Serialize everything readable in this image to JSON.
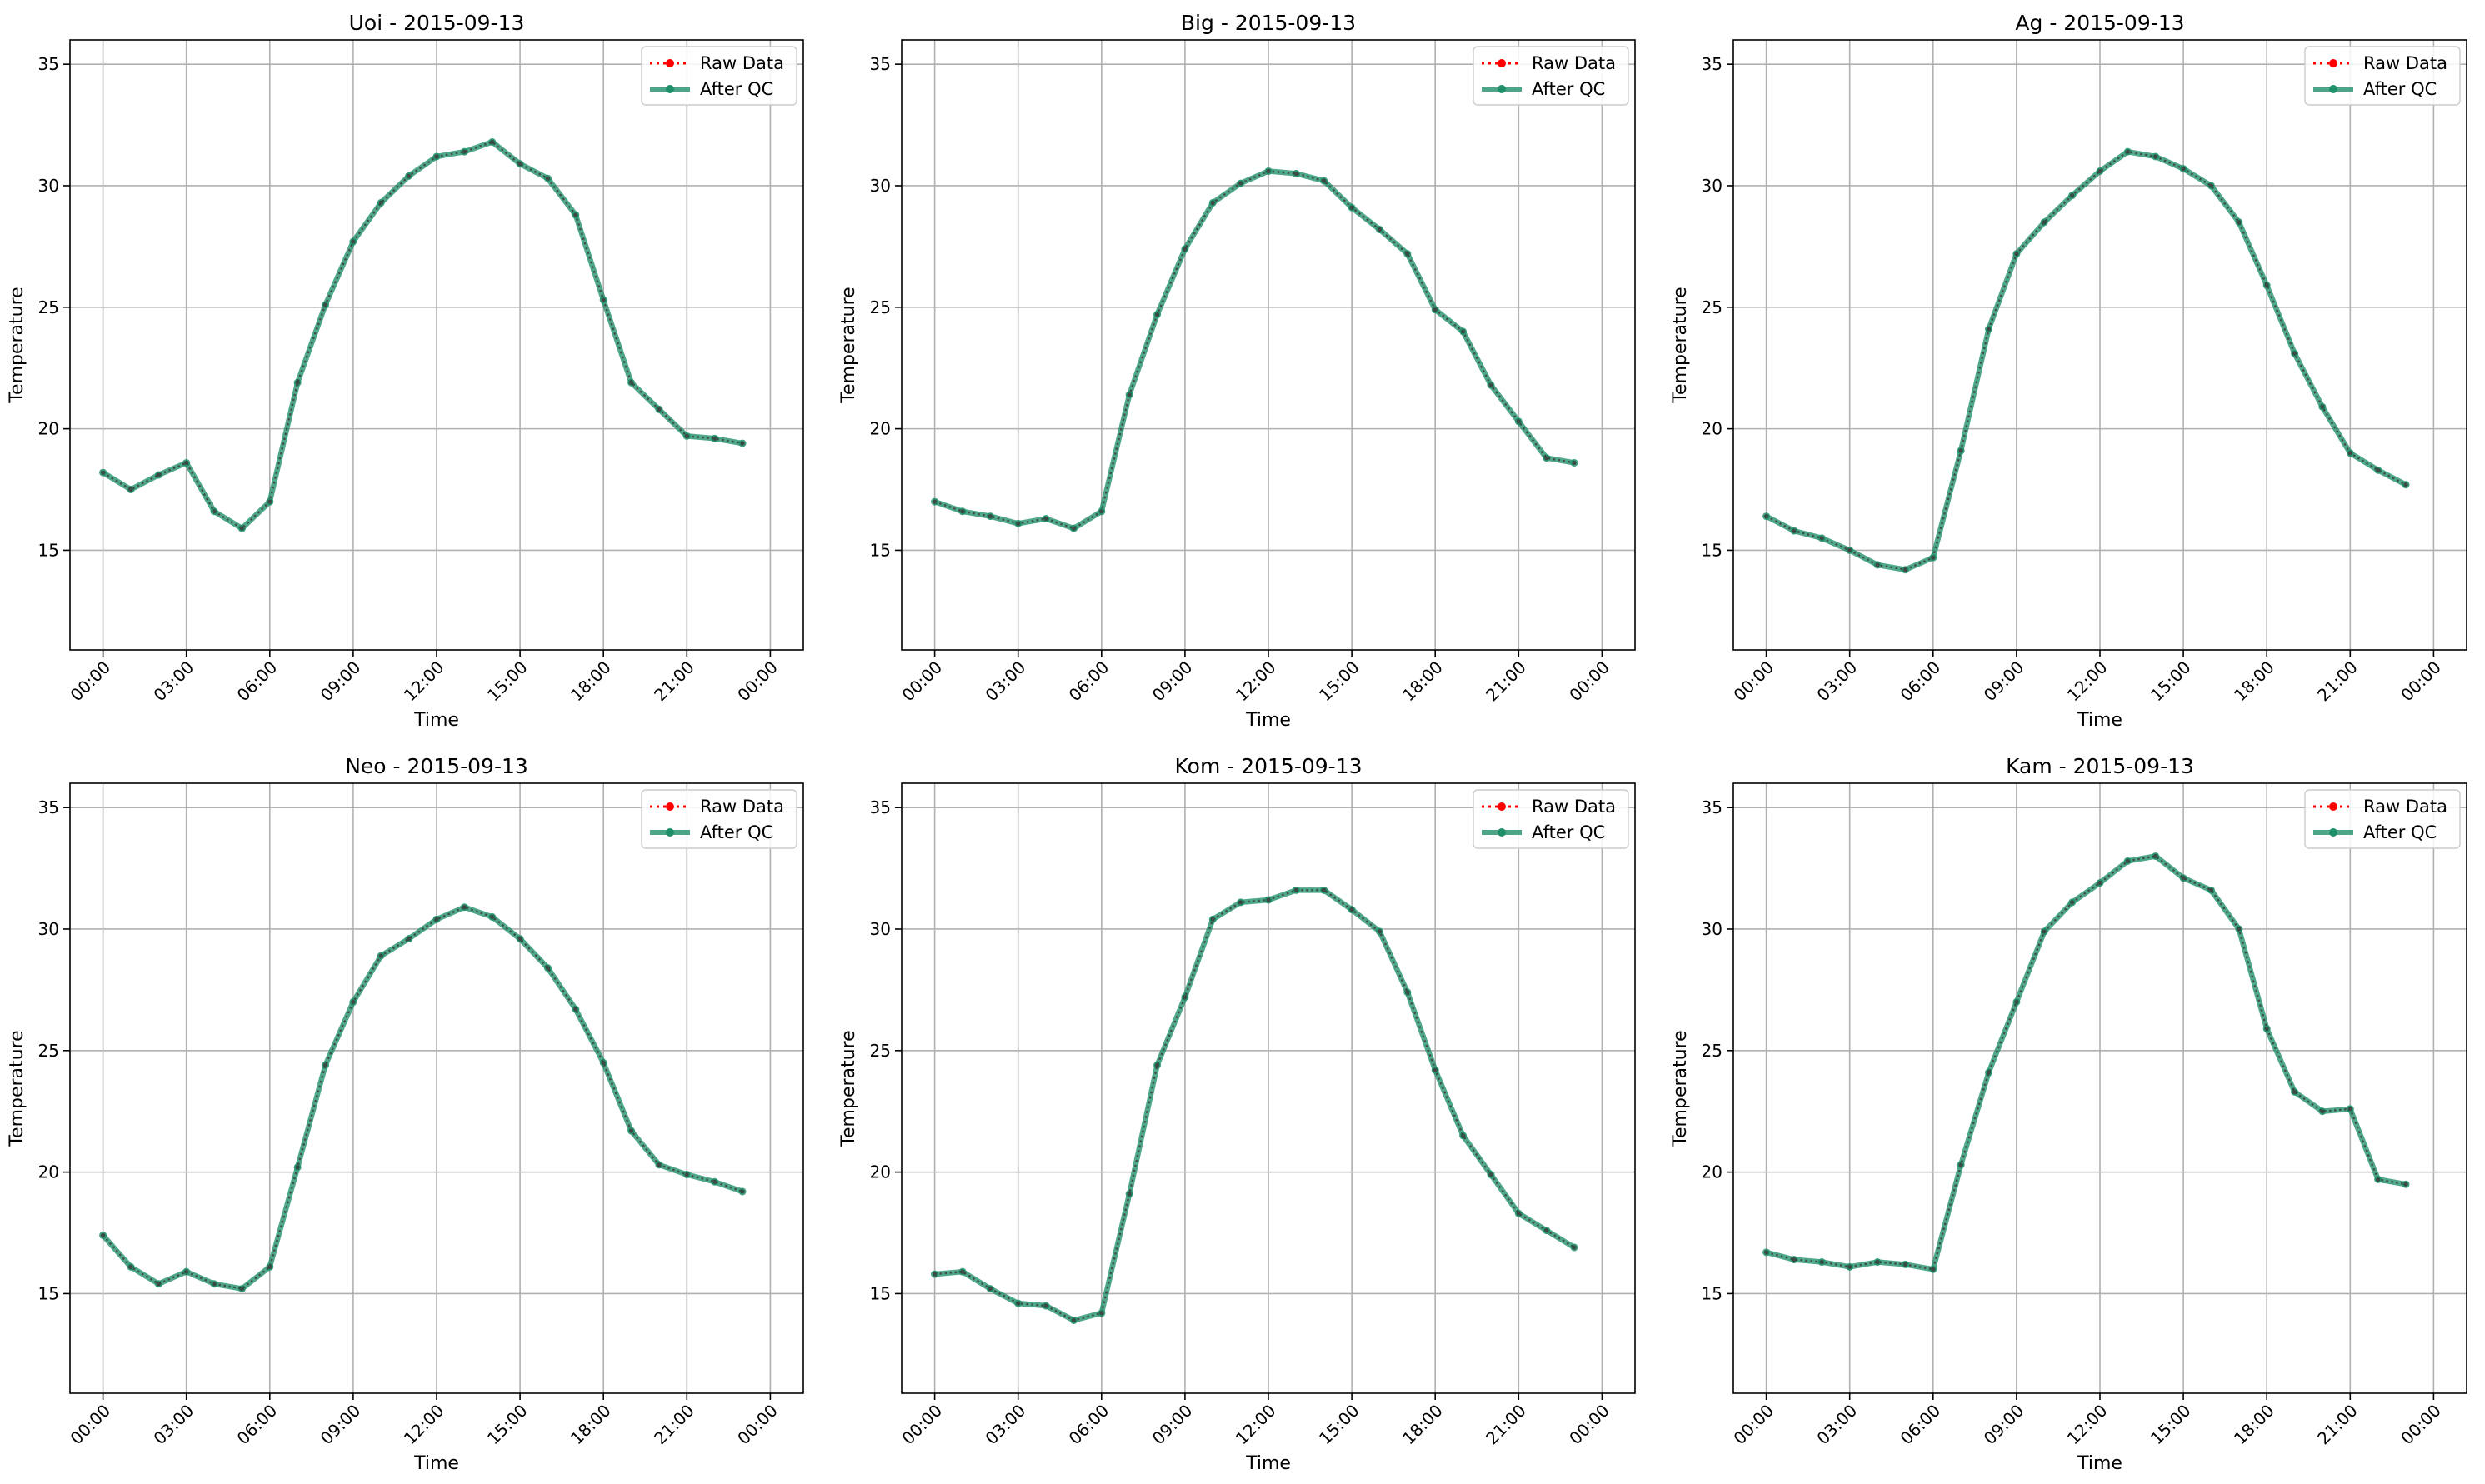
{
  "chart_data": [
    {
      "type": "line",
      "title": "Uoi - 2015-09-13",
      "xlabel": "Time",
      "ylabel": "Temperature",
      "x": [
        "00:00",
        "01:00",
        "02:00",
        "03:00",
        "04:00",
        "05:00",
        "06:00",
        "07:00",
        "08:00",
        "09:00",
        "10:00",
        "11:00",
        "12:00",
        "13:00",
        "14:00",
        "15:00",
        "16:00",
        "17:00",
        "18:00",
        "19:00",
        "20:00",
        "21:00",
        "22:00",
        "23:00"
      ],
      "xticks": [
        "00:00",
        "03:00",
        "06:00",
        "09:00",
        "12:00",
        "15:00",
        "18:00",
        "21:00",
        "00:00"
      ],
      "yticks": [
        15,
        20,
        25,
        30,
        35
      ],
      "ylim": [
        10.9,
        36.0
      ],
      "grid": true,
      "legend": "top-right",
      "series": [
        {
          "name": "Raw Data",
          "color": "#ff0000",
          "style": "dotted",
          "values": [
            18.2,
            17.5,
            18.1,
            18.6,
            16.6,
            15.9,
            17.0,
            21.9,
            25.1,
            27.7,
            29.3,
            30.4,
            31.2,
            31.4,
            31.8,
            30.9,
            30.3,
            28.8,
            25.3,
            21.9,
            20.8,
            19.7,
            19.6,
            19.4
          ]
        },
        {
          "name": "After QC",
          "color": "#1f8f6a",
          "style": "solid",
          "values": [
            18.2,
            17.5,
            18.1,
            18.6,
            16.6,
            15.9,
            17.0,
            21.9,
            25.1,
            27.7,
            29.3,
            30.4,
            31.2,
            31.4,
            31.8,
            30.9,
            30.3,
            28.8,
            25.3,
            21.9,
            20.8,
            19.7,
            19.6,
            19.4
          ]
        }
      ]
    },
    {
      "type": "line",
      "title": "Big - 2015-09-13",
      "xlabel": "Time",
      "ylabel": "Temperature",
      "x": [
        "00:00",
        "01:00",
        "02:00",
        "03:00",
        "04:00",
        "05:00",
        "06:00",
        "07:00",
        "08:00",
        "09:00",
        "10:00",
        "11:00",
        "12:00",
        "13:00",
        "14:00",
        "15:00",
        "16:00",
        "17:00",
        "18:00",
        "19:00",
        "20:00",
        "21:00",
        "22:00",
        "23:00"
      ],
      "xticks": [
        "00:00",
        "03:00",
        "06:00",
        "09:00",
        "12:00",
        "15:00",
        "18:00",
        "21:00",
        "00:00"
      ],
      "yticks": [
        15,
        20,
        25,
        30,
        35
      ],
      "ylim": [
        10.9,
        36.0
      ],
      "grid": true,
      "legend": "top-right",
      "series": [
        {
          "name": "Raw Data",
          "color": "#ff0000",
          "style": "dotted",
          "values": [
            17.0,
            16.6,
            16.4,
            16.1,
            16.3,
            15.9,
            16.6,
            21.4,
            24.7,
            27.4,
            29.3,
            30.1,
            30.6,
            30.5,
            30.2,
            29.1,
            28.2,
            27.2,
            24.9,
            24.0,
            21.8,
            20.3,
            18.8,
            18.6
          ]
        },
        {
          "name": "After QC",
          "color": "#1f8f6a",
          "style": "solid",
          "values": [
            17.0,
            16.6,
            16.4,
            16.1,
            16.3,
            15.9,
            16.6,
            21.4,
            24.7,
            27.4,
            29.3,
            30.1,
            30.6,
            30.5,
            30.2,
            29.1,
            28.2,
            27.2,
            24.9,
            24.0,
            21.8,
            20.3,
            18.8,
            18.6
          ]
        }
      ]
    },
    {
      "type": "line",
      "title": "Ag - 2015-09-13",
      "xlabel": "Time",
      "ylabel": "Temperature",
      "x": [
        "00:00",
        "01:00",
        "02:00",
        "03:00",
        "04:00",
        "05:00",
        "06:00",
        "07:00",
        "08:00",
        "09:00",
        "10:00",
        "11:00",
        "12:00",
        "13:00",
        "14:00",
        "15:00",
        "16:00",
        "17:00",
        "18:00",
        "19:00",
        "20:00",
        "21:00",
        "22:00",
        "23:00"
      ],
      "xticks": [
        "00:00",
        "03:00",
        "06:00",
        "09:00",
        "12:00",
        "15:00",
        "18:00",
        "21:00",
        "00:00"
      ],
      "yticks": [
        15,
        20,
        25,
        30,
        35
      ],
      "ylim": [
        10.9,
        36.0
      ],
      "grid": true,
      "legend": "top-right",
      "series": [
        {
          "name": "Raw Data",
          "color": "#ff0000",
          "style": "dotted",
          "values": [
            16.4,
            15.8,
            15.5,
            15.0,
            14.4,
            14.2,
            14.7,
            19.1,
            24.1,
            27.2,
            28.5,
            29.6,
            30.6,
            31.4,
            31.2,
            30.7,
            30.0,
            28.5,
            25.9,
            23.1,
            20.9,
            19.0,
            18.3,
            17.7
          ]
        },
        {
          "name": "After QC",
          "color": "#1f8f6a",
          "style": "solid",
          "values": [
            16.4,
            15.8,
            15.5,
            15.0,
            14.4,
            14.2,
            14.7,
            19.1,
            24.1,
            27.2,
            28.5,
            29.6,
            30.6,
            31.4,
            31.2,
            30.7,
            30.0,
            28.5,
            25.9,
            23.1,
            20.9,
            19.0,
            18.3,
            17.7
          ]
        }
      ]
    },
    {
      "type": "line",
      "title": "Neo - 2015-09-13",
      "xlabel": "Time",
      "ylabel": "Temperature",
      "x": [
        "00:00",
        "01:00",
        "02:00",
        "03:00",
        "04:00",
        "05:00",
        "06:00",
        "07:00",
        "08:00",
        "09:00",
        "10:00",
        "11:00",
        "12:00",
        "13:00",
        "14:00",
        "15:00",
        "16:00",
        "17:00",
        "18:00",
        "19:00",
        "20:00",
        "21:00",
        "22:00",
        "23:00"
      ],
      "xticks": [
        "00:00",
        "03:00",
        "06:00",
        "09:00",
        "12:00",
        "15:00",
        "18:00",
        "21:00",
        "00:00"
      ],
      "yticks": [
        15,
        20,
        25,
        30,
        35
      ],
      "ylim": [
        10.9,
        36.0
      ],
      "grid": true,
      "legend": "top-right",
      "series": [
        {
          "name": "Raw Data",
          "color": "#ff0000",
          "style": "dotted",
          "values": [
            17.4,
            16.1,
            15.4,
            15.9,
            15.4,
            15.2,
            16.1,
            20.2,
            24.4,
            27.0,
            28.9,
            29.6,
            30.4,
            30.9,
            30.5,
            29.6,
            28.4,
            26.7,
            24.5,
            21.7,
            20.3,
            19.9,
            19.6,
            19.2
          ]
        },
        {
          "name": "After QC",
          "color": "#1f8f6a",
          "style": "solid",
          "values": [
            17.4,
            16.1,
            15.4,
            15.9,
            15.4,
            15.2,
            16.1,
            20.2,
            24.4,
            27.0,
            28.9,
            29.6,
            30.4,
            30.9,
            30.5,
            29.6,
            28.4,
            26.7,
            24.5,
            21.7,
            20.3,
            19.9,
            19.6,
            19.2
          ]
        }
      ]
    },
    {
      "type": "line",
      "title": "Kom - 2015-09-13",
      "xlabel": "Time",
      "ylabel": "Temperature",
      "x": [
        "00:00",
        "01:00",
        "02:00",
        "03:00",
        "04:00",
        "05:00",
        "06:00",
        "07:00",
        "08:00",
        "09:00",
        "10:00",
        "11:00",
        "12:00",
        "13:00",
        "14:00",
        "15:00",
        "16:00",
        "17:00",
        "18:00",
        "19:00",
        "20:00",
        "21:00",
        "22:00",
        "23:00"
      ],
      "xticks": [
        "00:00",
        "03:00",
        "06:00",
        "09:00",
        "12:00",
        "15:00",
        "18:00",
        "21:00",
        "00:00"
      ],
      "yticks": [
        15,
        20,
        25,
        30,
        35
      ],
      "ylim": [
        10.9,
        36.0
      ],
      "grid": true,
      "legend": "top-right",
      "series": [
        {
          "name": "Raw Data",
          "color": "#ff0000",
          "style": "dotted",
          "values": [
            15.8,
            15.9,
            15.2,
            14.6,
            14.5,
            13.9,
            14.2,
            19.1,
            24.4,
            27.2,
            30.4,
            31.1,
            31.2,
            31.6,
            31.6,
            30.8,
            29.9,
            27.4,
            24.2,
            21.5,
            19.9,
            18.3,
            17.6,
            16.9
          ]
        },
        {
          "name": "After QC",
          "color": "#1f8f6a",
          "style": "solid",
          "values": [
            15.8,
            15.9,
            15.2,
            14.6,
            14.5,
            13.9,
            14.2,
            19.1,
            24.4,
            27.2,
            30.4,
            31.1,
            31.2,
            31.6,
            31.6,
            30.8,
            29.9,
            27.4,
            24.2,
            21.5,
            19.9,
            18.3,
            17.6,
            16.9
          ]
        }
      ]
    },
    {
      "type": "line",
      "title": "Kam - 2015-09-13",
      "xlabel": "Time",
      "ylabel": "Temperature",
      "x": [
        "00:00",
        "01:00",
        "02:00",
        "03:00",
        "04:00",
        "05:00",
        "06:00",
        "07:00",
        "08:00",
        "09:00",
        "10:00",
        "11:00",
        "12:00",
        "13:00",
        "14:00",
        "15:00",
        "16:00",
        "17:00",
        "18:00",
        "19:00",
        "20:00",
        "21:00",
        "22:00",
        "23:00"
      ],
      "xticks": [
        "00:00",
        "03:00",
        "06:00",
        "09:00",
        "12:00",
        "15:00",
        "18:00",
        "21:00",
        "00:00"
      ],
      "yticks": [
        15,
        20,
        25,
        30,
        35
      ],
      "ylim": [
        10.9,
        36.0
      ],
      "grid": true,
      "legend": "top-right",
      "series": [
        {
          "name": "Raw Data",
          "color": "#ff0000",
          "style": "dotted",
          "values": [
            16.7,
            16.4,
            16.3,
            16.1,
            16.3,
            16.2,
            16.0,
            20.3,
            24.1,
            27.0,
            29.9,
            31.1,
            31.9,
            32.8,
            33.0,
            32.1,
            31.6,
            30.0,
            25.9,
            23.3,
            22.5,
            22.6,
            19.7,
            19.5
          ]
        },
        {
          "name": "After QC",
          "color": "#1f8f6a",
          "style": "solid",
          "values": [
            16.7,
            16.4,
            16.3,
            16.1,
            16.3,
            16.2,
            16.0,
            20.3,
            24.1,
            27.0,
            29.9,
            31.1,
            31.9,
            32.8,
            33.0,
            32.1,
            31.6,
            30.0,
            25.9,
            23.3,
            22.5,
            22.6,
            19.7,
            19.5
          ]
        }
      ]
    }
  ]
}
